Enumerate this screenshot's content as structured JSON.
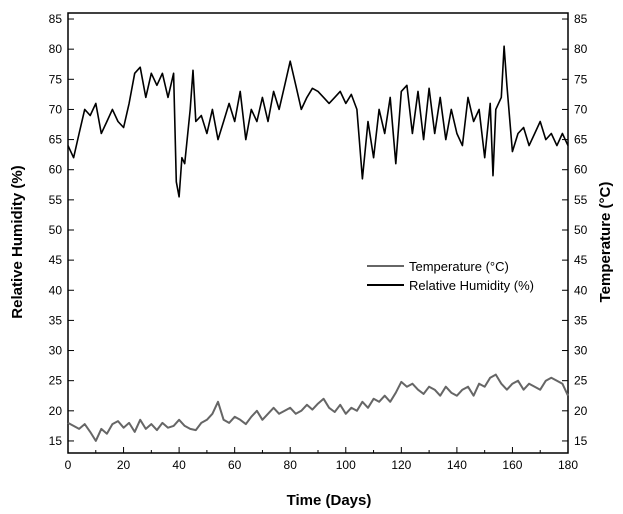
{
  "chart_data": {
    "type": "line",
    "xlabel": "Time (Days)",
    "ylabel_left": "Relative Humidity (%)",
    "ylabel_right": "Temperature (°C)",
    "xlim": [
      0,
      180
    ],
    "ylim": [
      13,
      86
    ],
    "x_ticks": [
      0,
      20,
      40,
      60,
      80,
      100,
      120,
      140,
      160,
      180
    ],
    "y_ticks": [
      15,
      20,
      25,
      30,
      35,
      40,
      45,
      50,
      55,
      60,
      65,
      70,
      75,
      80,
      85
    ],
    "grid": false,
    "legend_position": "middle-right",
    "series": [
      {
        "name": "Temperature (°C)",
        "color": "#666666",
        "axis": "right",
        "x": [
          0,
          2,
          4,
          6,
          8,
          10,
          12,
          14,
          16,
          18,
          20,
          22,
          24,
          26,
          28,
          30,
          32,
          34,
          36,
          38,
          40,
          42,
          44,
          46,
          48,
          50,
          52,
          54,
          56,
          58,
          60,
          62,
          64,
          66,
          68,
          70,
          72,
          74,
          76,
          78,
          80,
          82,
          84,
          86,
          88,
          90,
          92,
          94,
          96,
          98,
          100,
          102,
          104,
          106,
          108,
          110,
          112,
          114,
          116,
          118,
          120,
          122,
          124,
          126,
          128,
          130,
          132,
          134,
          136,
          138,
          140,
          142,
          144,
          146,
          148,
          150,
          152,
          154,
          156,
          158,
          160,
          162,
          164,
          166,
          168,
          170,
          172,
          174,
          176,
          178,
          180
        ],
        "values": [
          18,
          17.5,
          17,
          17.8,
          16.5,
          15,
          17,
          16.2,
          17.8,
          18.3,
          17.2,
          18,
          16.5,
          18.5,
          17,
          17.8,
          16.8,
          18,
          17.2,
          17.5,
          18.5,
          17.5,
          17,
          16.8,
          18,
          18.5,
          19.5,
          21.5,
          18.5,
          18,
          19,
          18.5,
          17.8,
          19,
          20,
          18.5,
          19.5,
          20.5,
          19.5,
          20,
          20.5,
          19.5,
          20,
          21,
          20.2,
          21.2,
          22,
          20.5,
          19.8,
          21,
          19.5,
          20.5,
          20,
          21.5,
          20.5,
          22,
          21.5,
          22.5,
          21.5,
          23,
          24.8,
          24,
          24.5,
          23.5,
          22.8,
          24,
          23.5,
          22.5,
          24,
          23,
          22.5,
          23.5,
          24,
          22.5,
          24.5,
          24,
          25.5,
          26,
          24.5,
          23.5,
          24.5,
          25,
          23.5,
          24.5,
          24,
          23.5,
          25,
          25.5,
          25,
          24.5,
          22.5
        ]
      },
      {
        "name": "Relative Humidity (%)",
        "color": "#000000",
        "axis": "left",
        "x": [
          0,
          2,
          4,
          6,
          8,
          10,
          12,
          14,
          16,
          18,
          20,
          22,
          24,
          26,
          28,
          30,
          32,
          34,
          36,
          38,
          39,
          40,
          41,
          42,
          44,
          45,
          46,
          48,
          50,
          52,
          54,
          56,
          58,
          60,
          62,
          64,
          66,
          68,
          70,
          72,
          74,
          76,
          78,
          80,
          82,
          84,
          86,
          88,
          90,
          92,
          94,
          96,
          98,
          100,
          102,
          104,
          106,
          108,
          110,
          112,
          114,
          116,
          118,
          120,
          122,
          124,
          126,
          128,
          130,
          132,
          134,
          136,
          138,
          140,
          142,
          144,
          146,
          148,
          150,
          152,
          153,
          154,
          156,
          157,
          158,
          160,
          162,
          164,
          166,
          168,
          170,
          172,
          174,
          176,
          178,
          180
        ],
        "values": [
          64,
          62,
          66,
          70,
          69,
          71,
          66,
          68,
          70,
          68,
          67,
          71,
          76,
          77,
          72,
          76,
          74,
          76,
          72,
          76,
          58,
          55.5,
          62,
          61,
          70,
          76.5,
          68,
          69,
          66,
          70,
          65,
          68,
          71,
          68,
          73,
          65,
          70,
          68,
          72,
          68,
          73,
          70,
          74,
          78,
          74,
          70,
          72,
          73.5,
          73,
          72,
          71,
          72,
          73,
          71,
          72.5,
          70,
          58.5,
          68,
          62,
          70,
          66,
          72,
          61,
          73,
          74,
          66,
          73,
          65,
          73.5,
          66,
          72,
          65,
          70,
          66,
          64,
          72,
          68,
          70,
          62,
          71,
          59,
          70,
          72,
          80.5,
          74,
          63,
          66,
          67,
          64,
          66,
          68,
          65,
          66,
          64,
          66,
          64
        ]
      }
    ]
  }
}
